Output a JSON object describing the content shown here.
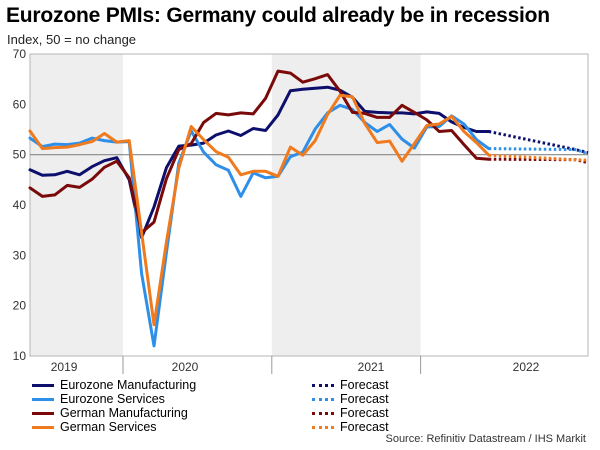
{
  "title": "Eurozone PMIs: Germany could already be in recession",
  "subtitle": "Index, 50 = no change",
  "source": "Source: Refinitiv Datastream / IHS Markit",
  "colors": {
    "eurozone_manufacturing": "#0c0f6b",
    "eurozone_services": "#2e8fe8",
    "german_manufacturing": "#7a0a0a",
    "german_services": "#f07a1e",
    "shade": "#eeeeee",
    "reference_line": "#888888"
  },
  "legend": [
    {
      "label": "Eurozone Manufacturing",
      "series": "eurozone_manufacturing",
      "style": "solid"
    },
    {
      "label": "Eurozone Services",
      "series": "eurozone_services",
      "style": "solid"
    },
    {
      "label": "German Manufacturing",
      "series": "german_manufacturing",
      "style": "solid"
    },
    {
      "label": "German Services",
      "series": "german_services",
      "style": "solid"
    },
    {
      "label": "Forecast",
      "series": "eurozone_manufacturing",
      "style": "dotted"
    },
    {
      "label": "Forecast",
      "series": "eurozone_services",
      "style": "dotted"
    },
    {
      "label": "Forecast",
      "series": "german_manufacturing",
      "style": "dotted"
    },
    {
      "label": "Forecast",
      "series": "german_services",
      "style": "dotted"
    }
  ],
  "chart_data": {
    "type": "line",
    "title": "Eurozone PMIs: Germany could already be in recession",
    "ylabel": "Index, 50 = no change",
    "xlabel": "",
    "ylim": [
      10,
      70
    ],
    "yticks": [
      10,
      20,
      30,
      40,
      50,
      60,
      70
    ],
    "reference_line": 50,
    "x_index_range": [
      0,
      45
    ],
    "year_labels": [
      {
        "label": "2019",
        "center": 2.75
      },
      {
        "label": "2020",
        "center": 12.5
      },
      {
        "label": "2021",
        "center": 27.5
      },
      {
        "label": "2022",
        "center": 40
      }
    ],
    "year_boundaries": [
      7.5,
      19.5,
      31.5
    ],
    "shaded_periods": [
      [
        0,
        7.5
      ],
      [
        19.5,
        31.5
      ]
    ],
    "x_start_month": "2019-03",
    "series": [
      {
        "name": "Eurozone Manufacturing",
        "key": "eurozone_manufacturing",
        "values": [
          47.0,
          45.9,
          46.0,
          46.7,
          46.0,
          47.6,
          48.8,
          49.4,
          45.0,
          33.5,
          39.6,
          47.4,
          51.7,
          51.9,
          52.3,
          53.9,
          54.7,
          53.8,
          55.2,
          54.8,
          57.9,
          62.7,
          63.0,
          63.2,
          63.4,
          62.8,
          61.4,
          58.6,
          58.4,
          58.3,
          58.3,
          58.1,
          58.5,
          58.2,
          56.5,
          55.4,
          54.6,
          54.6
        ],
        "forecast": [
          [
            44,
            51.0
          ],
          [
            45,
            50.4
          ]
        ]
      },
      {
        "name": "Eurozone Services",
        "key": "eurozone_services",
        "values": [
          53.3,
          51.6,
          52.1,
          52.0,
          52.3,
          53.3,
          52.8,
          52.5,
          52.6,
          26.4,
          12.0,
          30.5,
          48.3,
          54.7,
          50.5,
          48.0,
          46.9,
          41.7,
          46.4,
          45.4,
          45.7,
          49.6,
          50.5,
          55.1,
          58.3,
          59.8,
          59.0,
          56.4,
          54.6,
          56.0,
          53.1,
          51.3,
          55.5,
          55.6,
          57.7,
          56.1,
          53.0,
          51.2
        ],
        "forecast": [
          [
            44,
            51.0
          ],
          [
            45,
            50.2
          ]
        ]
      },
      {
        "name": "German Manufacturing",
        "key": "german_manufacturing",
        "values": [
          43.4,
          41.7,
          42.0,
          43.9,
          43.5,
          45.1,
          47.5,
          48.7,
          45.4,
          34.5,
          36.6,
          45.2,
          51.0,
          52.2,
          56.4,
          58.2,
          57.9,
          58.3,
          58.1,
          61.2,
          66.6,
          66.2,
          64.4,
          65.1,
          65.9,
          62.6,
          58.4,
          58.2,
          57.4,
          57.4,
          59.8,
          58.4,
          56.9,
          54.6,
          54.8,
          52.0,
          49.3,
          49.1
        ],
        "forecast": [
          [
            44,
            49.0
          ],
          [
            45,
            48.4
          ]
        ]
      },
      {
        "name": "German Services",
        "key": "german_services",
        "values": [
          54.7,
          51.2,
          51.4,
          51.5,
          52.0,
          52.6,
          54.2,
          52.5,
          52.8,
          34.5,
          16.2,
          32.6,
          47.3,
          55.6,
          53.0,
          50.6,
          49.5,
          46.0,
          46.7,
          46.7,
          45.7,
          51.5,
          49.9,
          52.8,
          58.0,
          61.8,
          61.5,
          56.2,
          52.4,
          52.7,
          48.7,
          52.2,
          55.8,
          56.1,
          57.6,
          54.6,
          52.4,
          49.9
        ],
        "forecast": [
          [
            44,
            49.0
          ],
          [
            45,
            48.9
          ]
        ]
      }
    ]
  }
}
